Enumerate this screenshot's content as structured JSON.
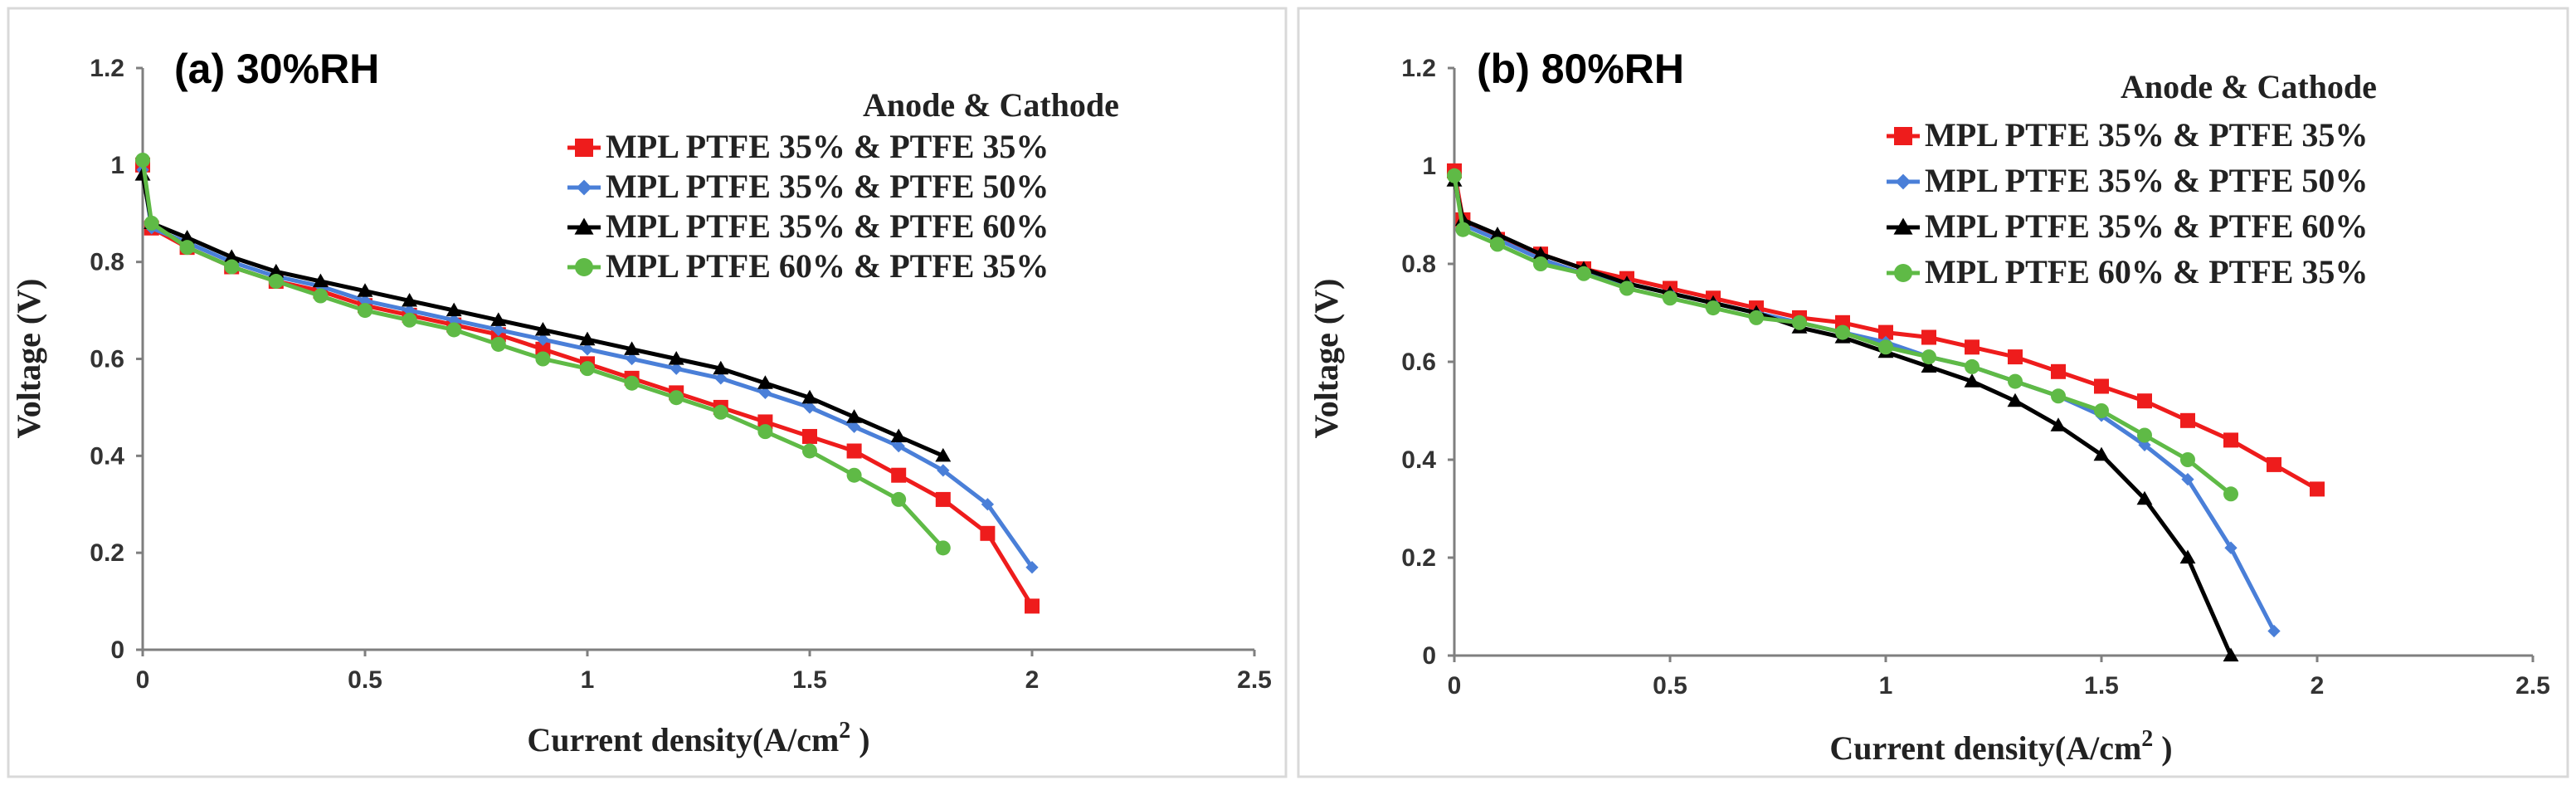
{
  "colors": {
    "red": "#ee1c1c",
    "blue": "#4a7fd8",
    "black": "#000000",
    "green": "#5fba46"
  },
  "chart_data": [
    {
      "type": "line",
      "title": "(a) 30%RH",
      "xlabel": "Current density(A/cm",
      "xlabel_sup": "2",
      "xlabel_close": " )",
      "ylabel": "Voltage (V)",
      "xlim": [
        0,
        2.5
      ],
      "ylim": [
        0,
        1.2
      ],
      "xticks": [
        "0",
        "0.5",
        "1",
        "1.5",
        "2",
        "2.5"
      ],
      "yticks": [
        "0",
        "0.2",
        "0.4",
        "0.6",
        "0.8",
        "1",
        "1.2"
      ],
      "legend_header": "Anode   &  Cathode",
      "legend_position": "top-right",
      "grid": false,
      "series": [
        {
          "name": "MPL PTFE 35% & PTFE 35%",
          "color": "red",
          "marker": "square",
          "points": [
            [
              0,
              1.0
            ],
            [
              0.02,
              0.87
            ],
            [
              0.1,
              0.83
            ],
            [
              0.2,
              0.79
            ],
            [
              0.3,
              0.76
            ],
            [
              0.4,
              0.74
            ],
            [
              0.5,
              0.71
            ],
            [
              0.6,
              0.69
            ],
            [
              0.7,
              0.67
            ],
            [
              0.8,
              0.65
            ],
            [
              0.9,
              0.62
            ],
            [
              1.0,
              0.59
            ],
            [
              1.1,
              0.56
            ],
            [
              1.2,
              0.53
            ],
            [
              1.3,
              0.5
            ],
            [
              1.4,
              0.47
            ],
            [
              1.5,
              0.44
            ],
            [
              1.6,
              0.41
            ],
            [
              1.7,
              0.36
            ],
            [
              1.8,
              0.31
            ],
            [
              1.9,
              0.24
            ],
            [
              2.0,
              0.09
            ]
          ]
        },
        {
          "name": "MPL PTFE 35% & PTFE 50%",
          "color": "blue",
          "marker": "diamond",
          "points": [
            [
              0,
              0.99
            ],
            [
              0.02,
              0.87
            ],
            [
              0.1,
              0.84
            ],
            [
              0.2,
              0.8
            ],
            [
              0.3,
              0.77
            ],
            [
              0.4,
              0.75
            ],
            [
              0.5,
              0.72
            ],
            [
              0.6,
              0.7
            ],
            [
              0.7,
              0.68
            ],
            [
              0.8,
              0.66
            ],
            [
              0.9,
              0.64
            ],
            [
              1.0,
              0.62
            ],
            [
              1.1,
              0.6
            ],
            [
              1.2,
              0.58
            ],
            [
              1.3,
              0.56
            ],
            [
              1.4,
              0.53
            ],
            [
              1.5,
              0.5
            ],
            [
              1.6,
              0.46
            ],
            [
              1.7,
              0.42
            ],
            [
              1.8,
              0.37
            ],
            [
              1.9,
              0.3
            ],
            [
              2.0,
              0.17
            ]
          ]
        },
        {
          "name": "MPL PTFE 35% & PTFE 60%",
          "color": "black",
          "marker": "triangle",
          "points": [
            [
              0,
              0.98
            ],
            [
              0.02,
              0.88
            ],
            [
              0.1,
              0.85
            ],
            [
              0.2,
              0.81
            ],
            [
              0.3,
              0.78
            ],
            [
              0.4,
              0.76
            ],
            [
              0.5,
              0.74
            ],
            [
              0.6,
              0.72
            ],
            [
              0.7,
              0.7
            ],
            [
              0.8,
              0.68
            ],
            [
              0.9,
              0.66
            ],
            [
              1.0,
              0.64
            ],
            [
              1.1,
              0.62
            ],
            [
              1.2,
              0.6
            ],
            [
              1.3,
              0.58
            ],
            [
              1.4,
              0.55
            ],
            [
              1.5,
              0.52
            ],
            [
              1.6,
              0.48
            ],
            [
              1.7,
              0.44
            ],
            [
              1.8,
              0.4
            ]
          ]
        },
        {
          "name": "MPL PTFE 60% & PTFE 35%",
          "color": "green",
          "marker": "circle",
          "points": [
            [
              0,
              1.01
            ],
            [
              0.02,
              0.88
            ],
            [
              0.1,
              0.83
            ],
            [
              0.2,
              0.79
            ],
            [
              0.3,
              0.76
            ],
            [
              0.4,
              0.73
            ],
            [
              0.5,
              0.7
            ],
            [
              0.6,
              0.68
            ],
            [
              0.7,
              0.66
            ],
            [
              0.8,
              0.63
            ],
            [
              0.9,
              0.6
            ],
            [
              1.0,
              0.58
            ],
            [
              1.1,
              0.55
            ],
            [
              1.2,
              0.52
            ],
            [
              1.3,
              0.49
            ],
            [
              1.4,
              0.45
            ],
            [
              1.5,
              0.41
            ],
            [
              1.6,
              0.36
            ],
            [
              1.7,
              0.31
            ],
            [
              1.8,
              0.21
            ]
          ]
        }
      ]
    },
    {
      "type": "line",
      "title": "(b) 80%RH",
      "xlabel": "Current density(A/cm",
      "xlabel_sup": "2",
      "xlabel_close": " )",
      "ylabel": "Voltage (V)",
      "xlim": [
        0,
        2.5
      ],
      "ylim": [
        0,
        1.2
      ],
      "xticks": [
        "0",
        "0.5",
        "1",
        "1.5",
        "2",
        "2.5"
      ],
      "yticks": [
        "0",
        "0.2",
        "0.4",
        "0.6",
        "0.8",
        "1",
        "1.2"
      ],
      "legend_header": "Anode   &  Cathode",
      "legend_position": "top-right",
      "grid": false,
      "series": [
        {
          "name": "MPL PTFE 35% & PTFE 35%",
          "color": "red",
          "marker": "square",
          "points": [
            [
              0,
              0.99
            ],
            [
              0.02,
              0.89
            ],
            [
              0.1,
              0.85
            ],
            [
              0.2,
              0.82
            ],
            [
              0.3,
              0.79
            ],
            [
              0.4,
              0.77
            ],
            [
              0.5,
              0.75
            ],
            [
              0.6,
              0.73
            ],
            [
              0.7,
              0.71
            ],
            [
              0.8,
              0.69
            ],
            [
              0.9,
              0.68
            ],
            [
              1.0,
              0.66
            ],
            [
              1.1,
              0.65
            ],
            [
              1.2,
              0.63
            ],
            [
              1.3,
              0.61
            ],
            [
              1.4,
              0.58
            ],
            [
              1.5,
              0.55
            ],
            [
              1.6,
              0.52
            ],
            [
              1.7,
              0.48
            ],
            [
              1.8,
              0.44
            ],
            [
              1.9,
              0.39
            ],
            [
              2.0,
              0.34
            ]
          ]
        },
        {
          "name": "MPL PTFE 35% & PTFE 50%",
          "color": "blue",
          "marker": "diamond",
          "points": [
            [
              0,
              0.98
            ],
            [
              0.02,
              0.88
            ],
            [
              0.1,
              0.85
            ],
            [
              0.2,
              0.81
            ],
            [
              0.3,
              0.78
            ],
            [
              0.4,
              0.76
            ],
            [
              0.5,
              0.74
            ],
            [
              0.6,
              0.72
            ],
            [
              0.7,
              0.7
            ],
            [
              0.8,
              0.68
            ],
            [
              0.9,
              0.66
            ],
            [
              1.0,
              0.64
            ],
            [
              1.1,
              0.61
            ],
            [
              1.2,
              0.59
            ],
            [
              1.3,
              0.56
            ],
            [
              1.4,
              0.53
            ],
            [
              1.5,
              0.49
            ],
            [
              1.6,
              0.43
            ],
            [
              1.7,
              0.36
            ],
            [
              1.8,
              0.22
            ],
            [
              1.9,
              0.05
            ]
          ]
        },
        {
          "name": "MPL PTFE 35% & PTFE 60%",
          "color": "black",
          "marker": "triangle",
          "points": [
            [
              0,
              0.97
            ],
            [
              0.02,
              0.89
            ],
            [
              0.1,
              0.86
            ],
            [
              0.2,
              0.82
            ],
            [
              0.3,
              0.79
            ],
            [
              0.4,
              0.76
            ],
            [
              0.5,
              0.74
            ],
            [
              0.6,
              0.72
            ],
            [
              0.7,
              0.7
            ],
            [
              0.8,
              0.67
            ],
            [
              0.9,
              0.65
            ],
            [
              1.0,
              0.62
            ],
            [
              1.1,
              0.59
            ],
            [
              1.2,
              0.56
            ],
            [
              1.3,
              0.52
            ],
            [
              1.4,
              0.47
            ],
            [
              1.5,
              0.41
            ],
            [
              1.6,
              0.32
            ],
            [
              1.7,
              0.2
            ],
            [
              1.8,
              0.0
            ]
          ]
        },
        {
          "name": "MPL PTFE 60% & PTFE 35%",
          "color": "green",
          "marker": "circle",
          "points": [
            [
              0,
              0.98
            ],
            [
              0.02,
              0.87
            ],
            [
              0.1,
              0.84
            ],
            [
              0.2,
              0.8
            ],
            [
              0.3,
              0.78
            ],
            [
              0.4,
              0.75
            ],
            [
              0.5,
              0.73
            ],
            [
              0.6,
              0.71
            ],
            [
              0.7,
              0.69
            ],
            [
              0.8,
              0.68
            ],
            [
              0.9,
              0.66
            ],
            [
              1.0,
              0.63
            ],
            [
              1.1,
              0.61
            ],
            [
              1.2,
              0.59
            ],
            [
              1.3,
              0.56
            ],
            [
              1.4,
              0.53
            ],
            [
              1.5,
              0.5
            ],
            [
              1.6,
              0.45
            ],
            [
              1.7,
              0.4
            ],
            [
              1.8,
              0.33
            ]
          ]
        }
      ]
    }
  ]
}
